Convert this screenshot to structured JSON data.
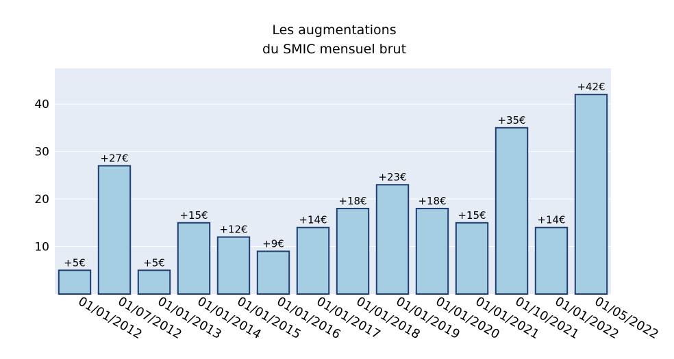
{
  "chart_data": {
    "type": "bar",
    "title_line1": "Les augmentations",
    "title_line2": "du SMIC mensuel brut",
    "xlabel": "",
    "ylabel": "",
    "categories": [
      "01/01/2012",
      "01/07/2012",
      "01/01/2013",
      "01/01/2014",
      "01/01/2015",
      "01/01/2016",
      "01/01/2017",
      "01/01/2018",
      "01/01/2019",
      "01/01/2020",
      "01/01/2021",
      "01/10/2021",
      "01/01/2022",
      "01/05/2022"
    ],
    "values": [
      5,
      27,
      5,
      15,
      12,
      9,
      14,
      18,
      23,
      18,
      15,
      35,
      14,
      42
    ],
    "data_labels": [
      "+5€",
      "+27€",
      "+5€",
      "+15€",
      "+12€",
      "+9€",
      "+14€",
      "+18€",
      "+23€",
      "+18€",
      "+15€",
      "+35€",
      "+14€",
      "+42€"
    ],
    "yticks": [
      "10",
      "20",
      "30",
      "40"
    ],
    "ytick_values": [
      10,
      20,
      30,
      40
    ],
    "ylim": [
      0,
      47.5
    ],
    "grid": true,
    "legend": "none",
    "colors": {
      "plot_bg": "#e5ecf6",
      "bar_fill": "#a6cee3",
      "bar_stroke": "#1f3d73",
      "grid": "#ffffff"
    }
  }
}
